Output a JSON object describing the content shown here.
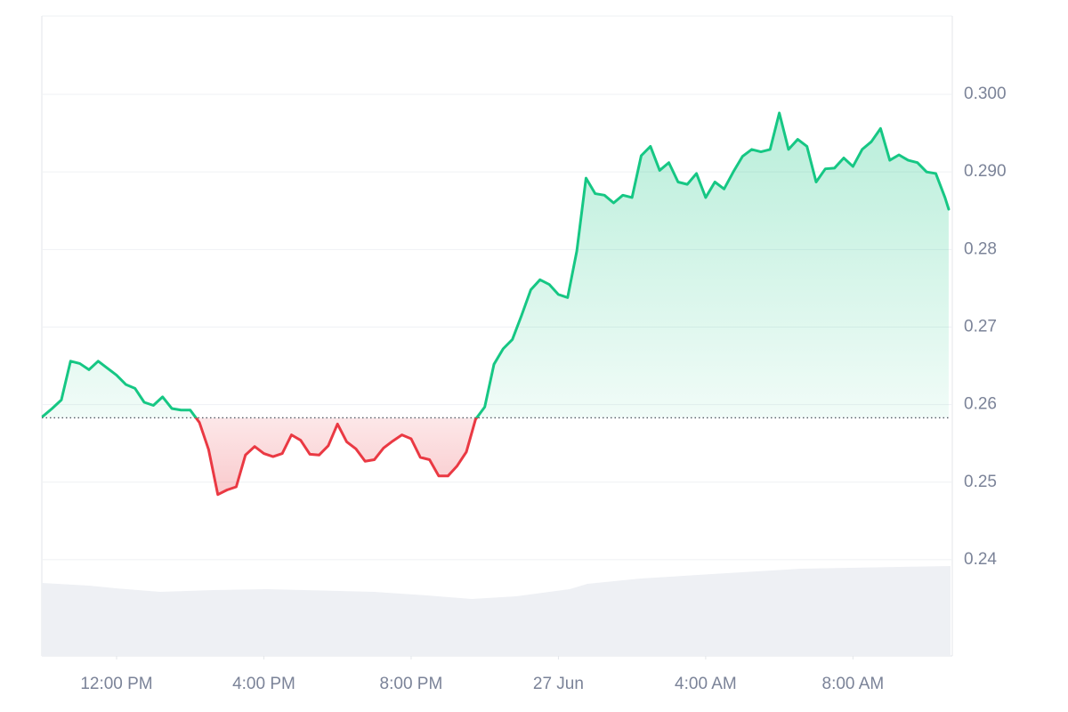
{
  "chart_data": {
    "type": "line",
    "x": [
      10,
      10.25,
      10.5,
      10.75,
      11,
      11.25,
      11.5,
      11.75,
      12,
      12.25,
      12.5,
      12.75,
      13,
      13.25,
      13.5,
      13.75,
      14,
      14.25,
      14.5,
      14.75,
      15,
      15.25,
      15.5,
      15.75,
      16,
      16.25,
      16.5,
      16.75,
      17,
      17.25,
      17.5,
      17.75,
      18,
      18.25,
      18.5,
      18.75,
      19,
      19.25,
      19.5,
      19.75,
      20,
      20.25,
      20.5,
      20.75,
      21,
      21.25,
      21.5,
      21.75,
      22,
      22.25,
      22.5,
      22.75,
      23,
      23.25,
      23.5,
      23.75,
      24,
      24.25,
      24.5,
      24.75,
      25,
      25.25,
      25.5,
      25.75,
      26,
      26.25,
      26.5,
      26.75,
      27,
      27.25,
      27.5,
      27.75,
      28,
      28.25,
      28.5,
      28.75,
      29,
      29.25,
      29.5,
      29.75,
      30,
      30.25,
      30.5,
      30.75,
      31,
      31.25,
      31.5,
      31.75,
      32,
      32.25,
      32.5,
      32.75,
      33,
      33.25,
      33.5,
      33.75,
      34,
      34.25,
      34.5,
      34.6
    ],
    "values": [
      0.2585,
      0.2595,
      0.2606,
      0.2656,
      0.2653,
      0.2645,
      0.2656,
      0.2647,
      0.2638,
      0.2626,
      0.2621,
      0.2603,
      0.2599,
      0.261,
      0.2595,
      0.2593,
      0.2593,
      0.2577,
      0.2542,
      0.2484,
      0.249,
      0.2494,
      0.2535,
      0.2546,
      0.2537,
      0.2533,
      0.2537,
      0.2561,
      0.2554,
      0.2536,
      0.2535,
      0.2547,
      0.2575,
      0.2552,
      0.2543,
      0.2527,
      0.2529,
      0.2544,
      0.2553,
      0.2561,
      0.2556,
      0.2532,
      0.2529,
      0.2508,
      0.2508,
      0.2521,
      0.2539,
      0.2581,
      0.2597,
      0.2652,
      0.2672,
      0.2684,
      0.2715,
      0.2748,
      0.2761,
      0.2755,
      0.2742,
      0.2738,
      0.2798,
      0.2892,
      0.2872,
      0.287,
      0.286,
      0.287,
      0.2867,
      0.2921,
      0.2933,
      0.2902,
      0.2912,
      0.2887,
      0.2884,
      0.2898,
      0.2867,
      0.2887,
      0.2878,
      0.29,
      0.292,
      0.2929,
      0.2926,
      0.2929,
      0.2976,
      0.2929,
      0.2942,
      0.2933,
      0.2887,
      0.2904,
      0.2905,
      0.2918,
      0.2907,
      0.2929,
      0.2939,
      0.2956,
      0.2915,
      0.2922,
      0.2915,
      0.2912,
      0.29,
      0.2898,
      0.2867,
      0.2852
    ],
    "baseline": 0.2583,
    "up_color": "#16c784",
    "down_color": "#ea3943",
    "xlim": [
      9.97,
      34.65
    ],
    "xticks": [
      {
        "value": 12,
        "label": "12:00 PM"
      },
      {
        "value": 16,
        "label": "4:00 PM"
      },
      {
        "value": 20,
        "label": "8:00 PM"
      },
      {
        "value": 24,
        "label": "27 Jun"
      },
      {
        "value": 28,
        "label": "4:00 AM"
      },
      {
        "value": 32,
        "label": "8:00 AM"
      }
    ],
    "ylim": [
      0.2276,
      0.3101
    ],
    "yticks": [
      {
        "value": 0.3,
        "label": "0.300"
      },
      {
        "value": 0.29,
        "label": "0.290"
      },
      0.28,
      0.27,
      0.26,
      0.25,
      0.24
    ],
    "grid": true
  }
}
